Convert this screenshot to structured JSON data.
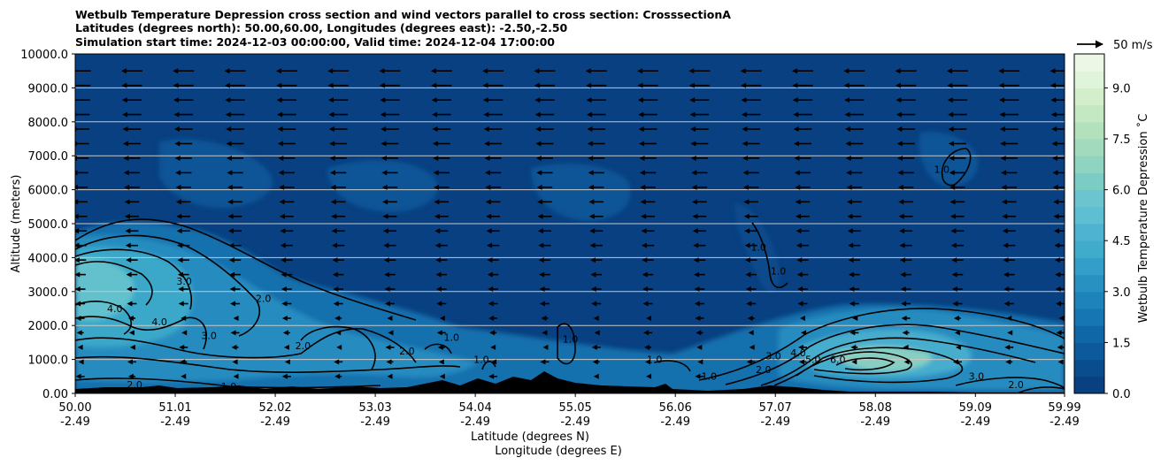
{
  "chart_data": {
    "type": "filled-contour cross section with wind vectors",
    "title_lines": [
      "Wetbulb Temperature Depression cross section and wind vectors parallel to cross section: CrosssectionA",
      "Latitudes (degrees north): 50.00,60.00, Longitudes (degrees east): -2.50,-2.50",
      "Simulation start time: 2024-12-03 00:00:00, Valid time: 2024-12-04 17:00:00"
    ],
    "xlabel_line1": "Latitude (degrees N)",
    "xlabel_line2": "Longitude (degrees E)",
    "ylabel": "Altitude (meters)",
    "xlim": [
      50.0,
      59.99
    ],
    "ylim": [
      0,
      10000
    ],
    "x_ticks": [
      {
        "lat": "50.00",
        "lon": "-2.49",
        "v": 50.0
      },
      {
        "lat": "51.01",
        "lon": "-2.49",
        "v": 51.01
      },
      {
        "lat": "52.02",
        "lon": "-2.49",
        "v": 52.02
      },
      {
        "lat": "53.03",
        "lon": "-2.49",
        "v": 53.03
      },
      {
        "lat": "54.04",
        "lon": "-2.49",
        "v": 54.04
      },
      {
        "lat": "55.05",
        "lon": "-2.49",
        "v": 55.05
      },
      {
        "lat": "56.06",
        "lon": "-2.49",
        "v": 56.06
      },
      {
        "lat": "57.07",
        "lon": "-2.49",
        "v": 57.07
      },
      {
        "lat": "58.08",
        "lon": "-2.49",
        "v": 58.08
      },
      {
        "lat": "59.09",
        "lon": "-2.49",
        "v": 59.09
      },
      {
        "lat": "59.99",
        "lon": "-2.49",
        "v": 59.99
      }
    ],
    "y_ticks": [
      {
        "label": "0.00",
        "v": 0
      },
      {
        "label": "1000.0",
        "v": 1000
      },
      {
        "label": "2000.0",
        "v": 2000
      },
      {
        "label": "3000.0",
        "v": 3000
      },
      {
        "label": "4000.0",
        "v": 4000
      },
      {
        "label": "5000.0",
        "v": 5000
      },
      {
        "label": "6000.0",
        "v": 6000
      },
      {
        "label": "7000.0",
        "v": 7000
      },
      {
        "label": "8000.0",
        "v": 8000
      },
      {
        "label": "9000.0",
        "v": 9000
      },
      {
        "label": "10000.0",
        "v": 10000
      }
    ],
    "grid": "horizontal",
    "colorbar": {
      "label": "Wetbulb Temperature Depression ˚C",
      "range": [
        0.0,
        10.0
      ],
      "step": 0.5,
      "ticks": [
        "0.0",
        "1.5",
        "3.0",
        "4.5",
        "6.0",
        "7.5",
        "9.0"
      ],
      "tick_values": [
        0.0,
        1.5,
        3.0,
        4.5,
        6.0,
        7.5,
        9.0
      ],
      "colormap": "GnBu_r",
      "colors": [
        "#084081",
        "#0a4d8f",
        "#0c5a9c",
        "#0f67a8",
        "#1675b3",
        "#1f83bb",
        "#2891c2",
        "#339ec8",
        "#40abcb",
        "#4eb3d0",
        "#5dbfd1",
        "#6cc5ce",
        "#7bccc4",
        "#8fd3c1",
        "#a2dabd",
        "#b3e1bb",
        "#c4e8c1",
        "#d3eecb",
        "#e0f3db",
        "#ecf7e6"
      ]
    },
    "quiver_key": {
      "label": "50 m/s",
      "value": 50
    },
    "wind_vectors": {
      "direction": "pointing toward lower latitude (south), stronger aloft"
    },
    "contour_labels": [
      {
        "text": "3.0",
        "x": 51.1,
        "y": 3200
      },
      {
        "text": "4.0",
        "x": 50.4,
        "y": 2400
      },
      {
        "text": "4.0",
        "x": 50.85,
        "y": 2000
      },
      {
        "text": "3.0",
        "x": 51.35,
        "y": 1600
      },
      {
        "text": "2.0",
        "x": 51.9,
        "y": 2700
      },
      {
        "text": "2.0",
        "x": 52.3,
        "y": 1300
      },
      {
        "text": "2.0",
        "x": 53.35,
        "y": 1150
      },
      {
        "text": "1.0",
        "x": 53.8,
        "y": 1550
      },
      {
        "text": "1.0",
        "x": 54.1,
        "y": 900
      },
      {
        "text": "1.0",
        "x": 55.0,
        "y": 1500
      },
      {
        "text": "1.0",
        "x": 56.9,
        "y": 4200
      },
      {
        "text": "1.0",
        "x": 57.1,
        "y": 3500
      },
      {
        "text": "1.0",
        "x": 58.75,
        "y": 6500
      },
      {
        "text": "1.0",
        "x": 55.85,
        "y": 900
      },
      {
        "text": "1.0",
        "x": 56.4,
        "y": 400
      },
      {
        "text": "2.0",
        "x": 56.95,
        "y": 600
      },
      {
        "text": "3.0",
        "x": 57.05,
        "y": 1000
      },
      {
        "text": "4.0",
        "x": 57.3,
        "y": 1100
      },
      {
        "text": "5.0",
        "x": 57.45,
        "y": 900
      },
      {
        "text": "6.0",
        "x": 57.7,
        "y": 900
      },
      {
        "text": "3.0",
        "x": 59.1,
        "y": 400
      },
      {
        "text": "2.0",
        "x": 59.5,
        "y": 150
      },
      {
        "text": "1.0",
        "x": 51.55,
        "y": 100
      },
      {
        "text": "2.0",
        "x": 50.6,
        "y": 150
      }
    ]
  },
  "colors": {
    "background_field": "#084081",
    "contour_line": "#000000",
    "terrain": "#000000",
    "grid_line": "#c8c8c8"
  }
}
